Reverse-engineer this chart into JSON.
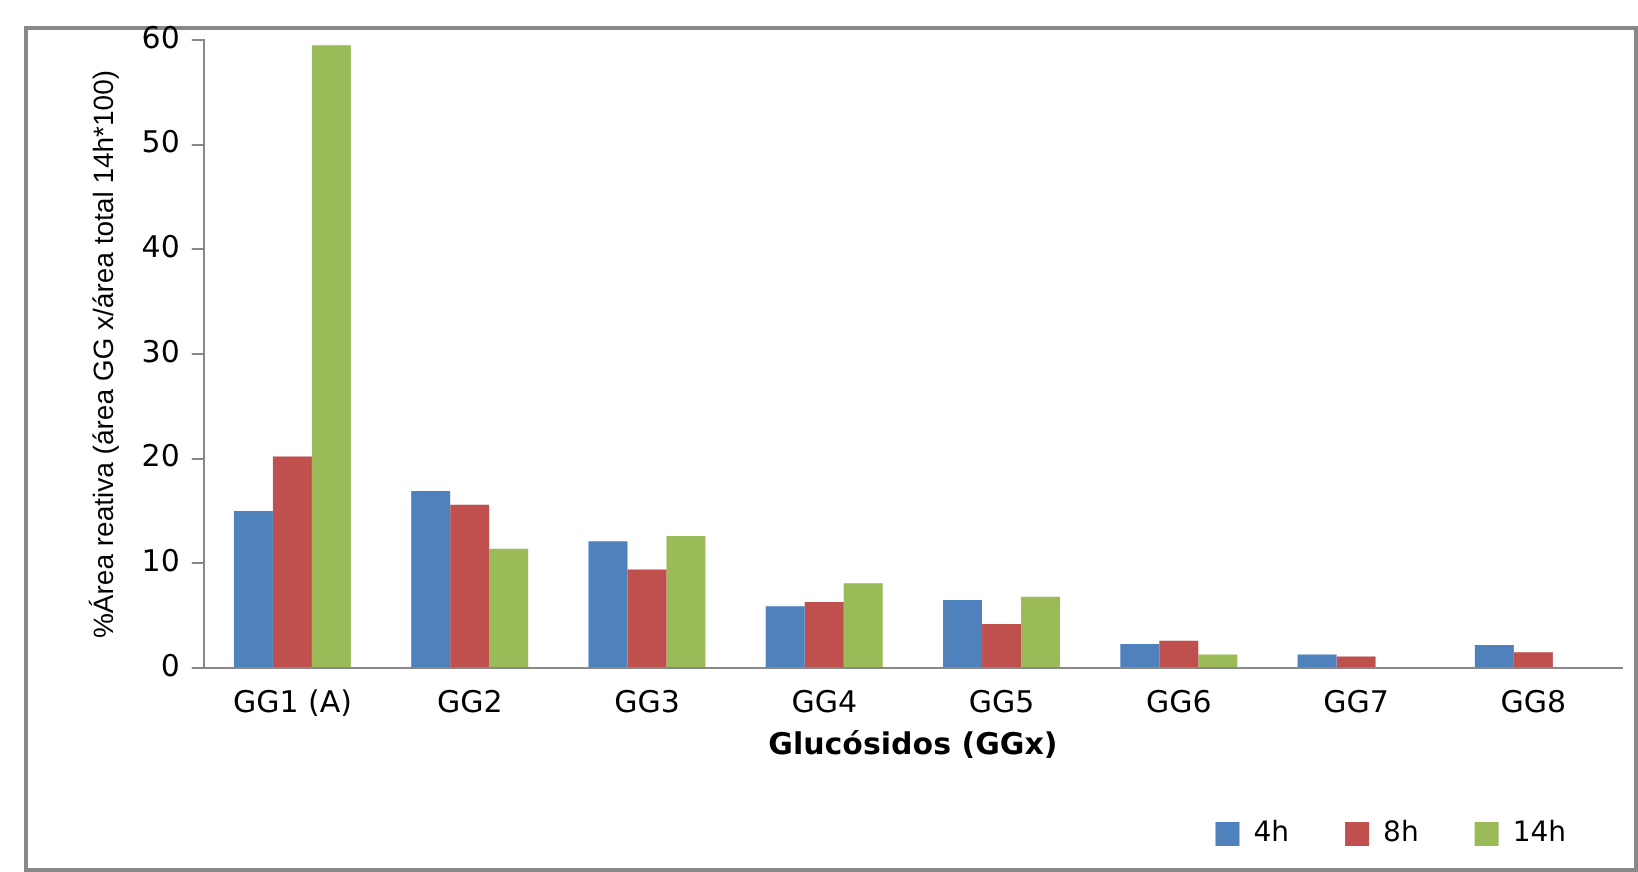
{
  "chart_data": {
    "type": "bar",
    "xlabel": "Glucósidos (GGx)",
    "ylabel": "%Área reativa (área GG x/área total 14h*100)",
    "categories": [
      "GG1 (A)",
      "GG2",
      "GG3",
      "GG4",
      "GG5",
      "GG6",
      "GG7",
      "GG8"
    ],
    "series": [
      {
        "name": "4h",
        "color": "#4f81bd",
        "values": [
          15.0,
          16.9,
          12.1,
          5.9,
          6.5,
          2.3,
          1.3,
          2.2
        ]
      },
      {
        "name": "8h",
        "color": "#c0504d",
        "values": [
          20.2,
          15.6,
          9.4,
          6.3,
          4.2,
          2.6,
          1.1,
          1.5
        ]
      },
      {
        "name": "14h",
        "color": "#9bbb59",
        "values": [
          59.5,
          11.4,
          12.6,
          8.1,
          6.8,
          1.3,
          null,
          null
        ]
      }
    ],
    "ylim": [
      0,
      60
    ],
    "yticks": [
      0,
      10,
      20,
      30,
      40,
      50,
      60
    ],
    "grid": false,
    "legend": "bottom right"
  }
}
